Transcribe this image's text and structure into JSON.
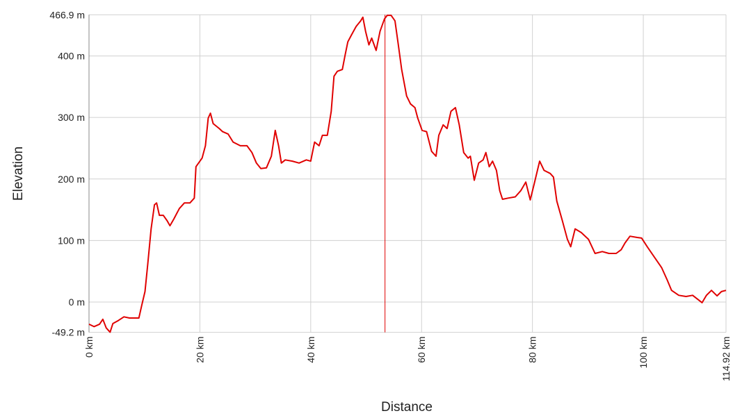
{
  "chart_data": {
    "type": "line",
    "xlabel": "Distance",
    "ylabel": "Elevation",
    "color": "#e00000",
    "grid": true,
    "xlim": [
      0,
      114.92
    ],
    "ylim": [
      -49.2,
      466.9
    ],
    "xticks": [
      {
        "value": 0,
        "label": "0 km"
      },
      {
        "value": 20,
        "label": "20 km"
      },
      {
        "value": 40,
        "label": "40 km"
      },
      {
        "value": 60,
        "label": "60 km"
      },
      {
        "value": 80,
        "label": "80 km"
      },
      {
        "value": 100,
        "label": "100 km"
      },
      {
        "value": 114.92,
        "label": "114.92 km"
      }
    ],
    "yticks": [
      {
        "value": -49.2,
        "label": "-49.2 m"
      },
      {
        "value": 0,
        "label": "0 m"
      },
      {
        "value": 100,
        "label": "100 m"
      },
      {
        "value": 200,
        "label": "200 m"
      },
      {
        "value": 300,
        "label": "300 m"
      },
      {
        "value": 400,
        "label": "400 m"
      },
      {
        "value": 466.9,
        "label": "466.9 m"
      }
    ],
    "marker_x": 53.4,
    "x": [
      0,
      0.9,
      1.9,
      2.5,
      3.1,
      3.8,
      4.3,
      5.3,
      6.3,
      7.3,
      8.4,
      9.0,
      9.5,
      10.1,
      10.6,
      11.2,
      11.8,
      12.2,
      12.7,
      13.4,
      14.1,
      14.6,
      15.3,
      16.3,
      17.2,
      18.2,
      19.0,
      19.3,
      20.4,
      21.0,
      21.5,
      21.9,
      22.4,
      23.5,
      24.1,
      25.1,
      26.0,
      27.3,
      28.5,
      29.4,
      30.2,
      31.0,
      32.0,
      32.9,
      33.6,
      34.2,
      34.7,
      35.4,
      36.7,
      37.9,
      39.2,
      40.0,
      40.7,
      41.5,
      42.1,
      43.0,
      43.7,
      44.2,
      44.8,
      45.7,
      46.2,
      46.7,
      47.4,
      48.2,
      49.0,
      49.4,
      49.9,
      50.5,
      51.0,
      51.8,
      52.5,
      53.3,
      53.8,
      54.5,
      55.2,
      55.8,
      56.4,
      57.3,
      58.0,
      58.8,
      59.3,
      60.1,
      60.9,
      61.8,
      62.6,
      63.1,
      63.9,
      64.6,
      65.3,
      66.1,
      66.8,
      67.6,
      68.4,
      68.8,
      69.5,
      70.3,
      71.1,
      71.6,
      72.2,
      72.8,
      73.5,
      74.1,
      74.6,
      75.6,
      76.9,
      77.9,
      78.8,
      79.6,
      80.4,
      81.3,
      82.1,
      83.2,
      83.8,
      84.4,
      85.4,
      86.3,
      86.9,
      87.7,
      88.8,
      90.1,
      91.3,
      92.6,
      93.8,
      95.1,
      96.0,
      96.7,
      97.6,
      98.9,
      99.7,
      100.7,
      102.0,
      103.3,
      104.3,
      105.1,
      106.4,
      107.7,
      108.9,
      109.6,
      110.6,
      111.4,
      112.3,
      113.3,
      114.1,
      114.92
    ],
    "values": [
      -36,
      -40,
      -36,
      -28,
      -42,
      -49,
      -35,
      -30,
      -24,
      -26,
      -26,
      -26,
      -6,
      17,
      62,
      119,
      158,
      161,
      141,
      141,
      132,
      124,
      135,
      152,
      161,
      161,
      169,
      220,
      234,
      254,
      299,
      307,
      290,
      282,
      277,
      273,
      260,
      254,
      254,
      243,
      226,
      217,
      218,
      237,
      279,
      254,
      226,
      231,
      229,
      226,
      231,
      229,
      260,
      254,
      271,
      271,
      310,
      367,
      375,
      378,
      401,
      423,
      435,
      448,
      457,
      463,
      440,
      418,
      429,
      409,
      440,
      460,
      466,
      466,
      457,
      418,
      378,
      335,
      322,
      316,
      299,
      279,
      277,
      245,
      237,
      271,
      288,
      282,
      310,
      316,
      288,
      243,
      234,
      237,
      198,
      226,
      231,
      243,
      220,
      229,
      214,
      181,
      167,
      169,
      171,
      181,
      195,
      166,
      195,
      229,
      214,
      209,
      203,
      164,
      132,
      102,
      90,
      119,
      113,
      102,
      79,
      82,
      79,
      79,
      85,
      96,
      107,
      105,
      104,
      90,
      73,
      56,
      36,
      19,
      11,
      9,
      11,
      6,
      -1,
      11,
      19,
      10,
      17,
      19
    ]
  }
}
